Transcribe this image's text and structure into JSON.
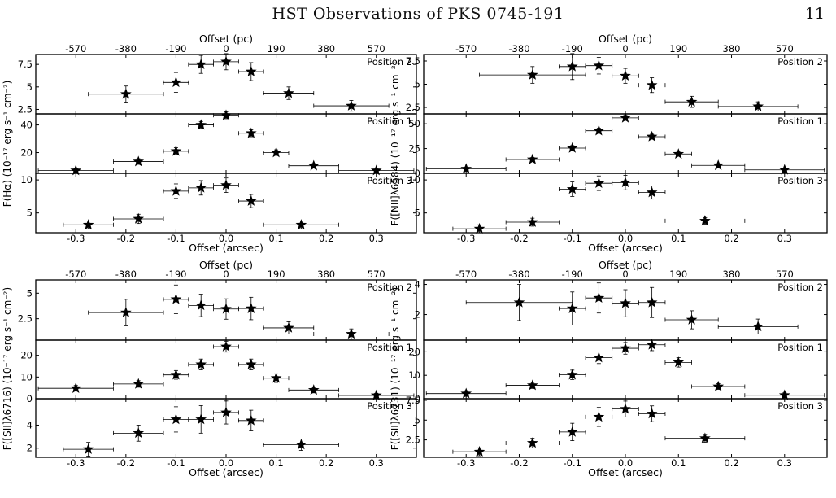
{
  "header": {
    "title": "HST Observations of PKS 0745-191",
    "page_number": "11"
  },
  "chart_data": [
    {
      "type": "scatter",
      "line": "[Hα]",
      "ylabel": "F(Hα) (10⁻¹⁷ erg s⁻¹ cm⁻²)",
      "xlabel": "Offset (arcsec)",
      "top_xlabel": "Offset (pc)",
      "xlim": [
        -0.38,
        0.38
      ],
      "xticks": [
        -0.3,
        -0.2,
        -0.1,
        0.0,
        0.1,
        0.2,
        0.3
      ],
      "top_ticks": [
        {
          "label": "-570",
          "x": -0.3
        },
        {
          "label": "-380",
          "x": -0.2
        },
        {
          "label": "-190",
          "x": -0.1
        },
        {
          "label": "0",
          "x": 0.0
        },
        {
          "label": "190",
          "x": 0.1
        },
        {
          "label": "380",
          "x": 0.2
        },
        {
          "label": "570",
          "x": 0.3
        }
      ],
      "panels": [
        {
          "position": "Position 2",
          "ylim": [
            2.0,
            8.6
          ],
          "yticks": [
            2.5,
            5.0,
            7.5
          ],
          "points": [
            {
              "x": -0.2,
              "y": 4.2,
              "xerr": 0.075,
              "yerr": 0.9
            },
            {
              "x": -0.1,
              "y": 5.5,
              "xerr": 0.025,
              "yerr": 1.1
            },
            {
              "x": -0.05,
              "y": 7.5,
              "xerr": 0.025,
              "yerr": 1.0
            },
            {
              "x": 0.0,
              "y": 7.8,
              "xerr": 0.025,
              "yerr": 0.9
            },
            {
              "x": 0.05,
              "y": 6.7,
              "xerr": 0.025,
              "yerr": 1.0
            },
            {
              "x": 0.125,
              "y": 4.3,
              "xerr": 0.05,
              "yerr": 0.7
            },
            {
              "x": 0.25,
              "y": 2.9,
              "xerr": 0.075,
              "yerr": 0.6
            }
          ]
        },
        {
          "position": "Position 1",
          "ylim": [
            5,
            48
          ],
          "yticks": [
            20,
            40
          ],
          "points": [
            {
              "x": -0.3,
              "y": 7,
              "xerr": 0.075,
              "yerr": 1.5
            },
            {
              "x": -0.175,
              "y": 13.5,
              "xerr": 0.05,
              "yerr": 2
            },
            {
              "x": -0.1,
              "y": 21,
              "xerr": 0.025,
              "yerr": 2.5
            },
            {
              "x": -0.05,
              "y": 40,
              "xerr": 0.025,
              "yerr": 2.5
            },
            {
              "x": 0.0,
              "y": 47,
              "xerr": 0.025,
              "yerr": 2.5
            },
            {
              "x": 0.05,
              "y": 34,
              "xerr": 0.025,
              "yerr": 2.5
            },
            {
              "x": 0.1,
              "y": 20,
              "xerr": 0.025,
              "yerr": 2
            },
            {
              "x": 0.175,
              "y": 10.5,
              "xerr": 0.05,
              "yerr": 1.5
            },
            {
              "x": 0.3,
              "y": 7,
              "xerr": 0.075,
              "yerr": 1
            }
          ]
        },
        {
          "position": "Position 3",
          "ylim": [
            2,
            11
          ],
          "yticks": [
            5,
            10
          ],
          "points": [
            {
              "x": -0.275,
              "y": 3.2,
              "xerr": 0.05,
              "yerr": 0.6
            },
            {
              "x": -0.175,
              "y": 4.1,
              "xerr": 0.05,
              "yerr": 0.7
            },
            {
              "x": -0.1,
              "y": 8.3,
              "xerr": 0.025,
              "yerr": 1.1
            },
            {
              "x": -0.05,
              "y": 8.8,
              "xerr": 0.025,
              "yerr": 1.1
            },
            {
              "x": 0.0,
              "y": 9.2,
              "xerr": 0.025,
              "yerr": 1.1
            },
            {
              "x": 0.05,
              "y": 6.8,
              "xerr": 0.025,
              "yerr": 1.0
            },
            {
              "x": 0.15,
              "y": 3.2,
              "xerr": 0.075,
              "yerr": 0.6
            }
          ]
        }
      ]
    },
    {
      "type": "scatter",
      "line": "[NII]6584",
      "ylabel": "F([NII]λ6584) (10⁻¹⁷ erg s⁻¹ cm⁻²)",
      "xlabel": "Offset (arcsec)",
      "top_xlabel": "Offset (pc)",
      "xlim": [
        -0.38,
        0.38
      ],
      "xticks": [
        -0.3,
        -0.2,
        -0.1,
        0.0,
        0.1,
        0.2,
        0.3
      ],
      "top_ticks": [
        {
          "label": "-570",
          "x": -0.3
        },
        {
          "label": "-380",
          "x": -0.2
        },
        {
          "label": "-190",
          "x": -0.1
        },
        {
          "label": "0",
          "x": 0.0
        },
        {
          "label": "190",
          "x": 0.1
        },
        {
          "label": "380",
          "x": 0.2
        },
        {
          "label": "570",
          "x": 0.3
        }
      ],
      "panels": [
        {
          "position": "Position 2",
          "ylim": [
            1.8,
            8.2
          ],
          "yticks": [
            2.5,
            5.0,
            7.5
          ],
          "points": [
            {
              "x": -0.175,
              "y": 6.0,
              "xerr": 0.1,
              "yerr": 0.9
            },
            {
              "x": -0.1,
              "y": 6.9,
              "xerr": 0.025,
              "yerr": 1.4
            },
            {
              "x": -0.05,
              "y": 7.0,
              "xerr": 0.025,
              "yerr": 0.9
            },
            {
              "x": 0.0,
              "y": 5.9,
              "xerr": 0.025,
              "yerr": 0.8
            },
            {
              "x": 0.05,
              "y": 4.9,
              "xerr": 0.025,
              "yerr": 0.8
            },
            {
              "x": 0.125,
              "y": 3.1,
              "xerr": 0.05,
              "yerr": 0.6
            },
            {
              "x": 0.25,
              "y": 2.6,
              "xerr": 0.075,
              "yerr": 0.5
            }
          ]
        },
        {
          "position": "Position 1",
          "ylim": [
            0,
            60
          ],
          "yticks": [
            0,
            25,
            50
          ],
          "points": [
            {
              "x": -0.3,
              "y": 4.5,
              "xerr": 0.075,
              "yerr": 1.5
            },
            {
              "x": -0.175,
              "y": 14,
              "xerr": 0.05,
              "yerr": 2
            },
            {
              "x": -0.1,
              "y": 25.5,
              "xerr": 0.025,
              "yerr": 2.5
            },
            {
              "x": -0.05,
              "y": 43,
              "xerr": 0.025,
              "yerr": 2.5
            },
            {
              "x": 0.0,
              "y": 56,
              "xerr": 0.025,
              "yerr": 2.5
            },
            {
              "x": 0.05,
              "y": 37,
              "xerr": 0.025,
              "yerr": 2.5
            },
            {
              "x": 0.1,
              "y": 19.5,
              "xerr": 0.025,
              "yerr": 2
            },
            {
              "x": 0.175,
              "y": 8,
              "xerr": 0.05,
              "yerr": 1.5
            },
            {
              "x": 0.3,
              "y": 3.5,
              "xerr": 0.075,
              "yerr": 1
            }
          ]
        },
        {
          "position": "Position 3",
          "ylim": [
            2,
            11
          ],
          "yticks": [
            5,
            10
          ],
          "points": [
            {
              "x": -0.275,
              "y": 2.6,
              "xerr": 0.05,
              "yerr": 0.6
            },
            {
              "x": -0.175,
              "y": 3.6,
              "xerr": 0.05,
              "yerr": 0.6
            },
            {
              "x": -0.1,
              "y": 8.6,
              "xerr": 0.025,
              "yerr": 1.1
            },
            {
              "x": -0.05,
              "y": 9.5,
              "xerr": 0.025,
              "yerr": 1.1
            },
            {
              "x": 0.0,
              "y": 9.6,
              "xerr": 0.025,
              "yerr": 1.1
            },
            {
              "x": 0.05,
              "y": 8.1,
              "xerr": 0.025,
              "yerr": 1.0
            },
            {
              "x": 0.15,
              "y": 3.8,
              "xerr": 0.075,
              "yerr": 0.5
            }
          ]
        }
      ]
    },
    {
      "type": "scatter",
      "line": "[SII]6716",
      "ylabel": "F([SII]λ6716) (10⁻¹⁷ erg s⁻¹ cm⁻²)",
      "xlabel": "Offset (arcsec)",
      "top_xlabel": "Offset (pc)",
      "xlim": [
        -0.38,
        0.38
      ],
      "xticks": [
        -0.3,
        -0.2,
        -0.1,
        0.0,
        0.1,
        0.2,
        0.3
      ],
      "top_ticks": [
        {
          "label": "-570",
          "x": -0.3
        },
        {
          "label": "-380",
          "x": -0.2
        },
        {
          "label": "-190",
          "x": -0.1
        },
        {
          "label": "0",
          "x": 0.0
        },
        {
          "label": "190",
          "x": 0.1
        },
        {
          "label": "380",
          "x": 0.2
        },
        {
          "label": "570",
          "x": 0.3
        }
      ],
      "panels": [
        {
          "position": "Position 2",
          "ylim": [
            0.4,
            6.3
          ],
          "yticks": [
            2.5,
            5.0
          ],
          "points": [
            {
              "x": -0.2,
              "y": 3.1,
              "xerr": 0.075,
              "yerr": 1.3
            },
            {
              "x": -0.1,
              "y": 4.4,
              "xerr": 0.025,
              "yerr": 1.4
            },
            {
              "x": -0.05,
              "y": 3.8,
              "xerr": 0.025,
              "yerr": 1.1
            },
            {
              "x": 0.0,
              "y": 3.45,
              "xerr": 0.025,
              "yerr": 1.0
            },
            {
              "x": 0.05,
              "y": 3.5,
              "xerr": 0.025,
              "yerr": 1.1
            },
            {
              "x": 0.125,
              "y": 1.6,
              "xerr": 0.05,
              "yerr": 0.6
            },
            {
              "x": 0.25,
              "y": 1.0,
              "xerr": 0.075,
              "yerr": 0.5
            }
          ]
        },
        {
          "position": "Position 1",
          "ylim": [
            0,
            27
          ],
          "yticks": [
            0,
            10,
            20
          ],
          "points": [
            {
              "x": -0.3,
              "y": 4.8,
              "xerr": 0.075,
              "yerr": 1.3
            },
            {
              "x": -0.175,
              "y": 6.8,
              "xerr": 0.05,
              "yerr": 1.5
            },
            {
              "x": -0.1,
              "y": 11,
              "xerr": 0.025,
              "yerr": 2
            },
            {
              "x": -0.05,
              "y": 15.8,
              "xerr": 0.025,
              "yerr": 2.5
            },
            {
              "x": 0.0,
              "y": 24,
              "xerr": 0.025,
              "yerr": 2.5
            },
            {
              "x": 0.05,
              "y": 15.8,
              "xerr": 0.025,
              "yerr": 2.5
            },
            {
              "x": 0.1,
              "y": 9.5,
              "xerr": 0.025,
              "yerr": 2
            },
            {
              "x": 0.175,
              "y": 4,
              "xerr": 0.05,
              "yerr": 1.3
            },
            {
              "x": 0.3,
              "y": 1.5,
              "xerr": 0.075,
              "yerr": 1
            }
          ]
        },
        {
          "position": "Position 3",
          "ylim": [
            1.2,
            6.3
          ],
          "yticks": [
            2,
            4
          ],
          "points": [
            {
              "x": -0.275,
              "y": 1.9,
              "xerr": 0.05,
              "yerr": 0.6
            },
            {
              "x": -0.175,
              "y": 3.3,
              "xerr": 0.05,
              "yerr": 0.7
            },
            {
              "x": -0.1,
              "y": 4.5,
              "xerr": 0.025,
              "yerr": 1.1
            },
            {
              "x": -0.05,
              "y": 4.5,
              "xerr": 0.025,
              "yerr": 1.2
            },
            {
              "x": 0.0,
              "y": 5.1,
              "xerr": 0.025,
              "yerr": 1.0
            },
            {
              "x": 0.05,
              "y": 4.4,
              "xerr": 0.025,
              "yerr": 0.9
            },
            {
              "x": 0.15,
              "y": 2.3,
              "xerr": 0.075,
              "yerr": 0.5
            }
          ]
        }
      ]
    },
    {
      "type": "scatter",
      "line": "[SII]6731",
      "ylabel": "F([SII]λ6731) (10⁻¹⁷ erg s⁻¹ cm⁻²)",
      "xlabel": "Offset (arcsec)",
      "top_xlabel": "Offset (pc)",
      "xlim": [
        -0.38,
        0.38
      ],
      "xticks": [
        -0.3,
        -0.2,
        -0.1,
        0.0,
        0.1,
        0.2,
        0.3
      ],
      "top_ticks": [
        {
          "label": "-570",
          "x": -0.3
        },
        {
          "label": "-380",
          "x": -0.2
        },
        {
          "label": "-190",
          "x": -0.1
        },
        {
          "label": "0",
          "x": 0.0
        },
        {
          "label": "190",
          "x": 0.1
        },
        {
          "label": "380",
          "x": 0.2
        },
        {
          "label": "570",
          "x": 0.3
        }
      ],
      "panels": [
        {
          "position": "Position 2",
          "ylim": [
            0.3,
            4.3
          ],
          "yticks": [
            2,
            4
          ],
          "points": [
            {
              "x": -0.2,
              "y": 2.8,
              "xerr": 0.1,
              "yerr": 1.2
            },
            {
              "x": -0.1,
              "y": 2.4,
              "xerr": 0.025,
              "yerr": 1.1
            },
            {
              "x": -0.05,
              "y": 3.1,
              "xerr": 0.025,
              "yerr": 1.0
            },
            {
              "x": 0.0,
              "y": 2.75,
              "xerr": 0.025,
              "yerr": 0.9
            },
            {
              "x": 0.05,
              "y": 2.8,
              "xerr": 0.025,
              "yerr": 1.0
            },
            {
              "x": 0.125,
              "y": 1.65,
              "xerr": 0.05,
              "yerr": 0.6
            },
            {
              "x": 0.25,
              "y": 1.2,
              "xerr": 0.075,
              "yerr": 0.5
            }
          ]
        },
        {
          "position": "Position 1",
          "ylim": [
            0,
            25
          ],
          "yticks": [
            0,
            10,
            20
          ],
          "points": [
            {
              "x": -0.3,
              "y": 2.2,
              "xerr": 0.075,
              "yerr": 1.2
            },
            {
              "x": -0.175,
              "y": 5.7,
              "xerr": 0.05,
              "yerr": 1.3
            },
            {
              "x": -0.1,
              "y": 10.2,
              "xerr": 0.025,
              "yerr": 2
            },
            {
              "x": -0.05,
              "y": 17.5,
              "xerr": 0.025,
              "yerr": 2.5
            },
            {
              "x": 0.0,
              "y": 21.5,
              "xerr": 0.025,
              "yerr": 2.5
            },
            {
              "x": 0.05,
              "y": 23,
              "xerr": 0.025,
              "yerr": 2.5
            },
            {
              "x": 0.1,
              "y": 15.5,
              "xerr": 0.025,
              "yerr": 2
            },
            {
              "x": 0.175,
              "y": 5.2,
              "xerr": 0.05,
              "yerr": 1.2
            },
            {
              "x": 0.3,
              "y": 1.5,
              "xerr": 0.075,
              "yerr": 1
            }
          ]
        },
        {
          "position": "Position 3",
          "ylim": [
            0.3,
            7.7
          ],
          "yticks": [
            2.5,
            5.0,
            7.5
          ],
          "points": [
            {
              "x": -0.275,
              "y": 1.0,
              "xerr": 0.05,
              "yerr": 0.5
            },
            {
              "x": -0.175,
              "y": 2.1,
              "xerr": 0.05,
              "yerr": 0.6
            },
            {
              "x": -0.1,
              "y": 3.5,
              "xerr": 0.025,
              "yerr": 1.1
            },
            {
              "x": -0.05,
              "y": 5.4,
              "xerr": 0.025,
              "yerr": 1.2
            },
            {
              "x": 0.0,
              "y": 6.4,
              "xerr": 0.025,
              "yerr": 1.0
            },
            {
              "x": 0.05,
              "y": 5.8,
              "xerr": 0.025,
              "yerr": 1.0
            },
            {
              "x": 0.15,
              "y": 2.7,
              "xerr": 0.075,
              "yerr": 0.5
            }
          ]
        }
      ]
    }
  ]
}
